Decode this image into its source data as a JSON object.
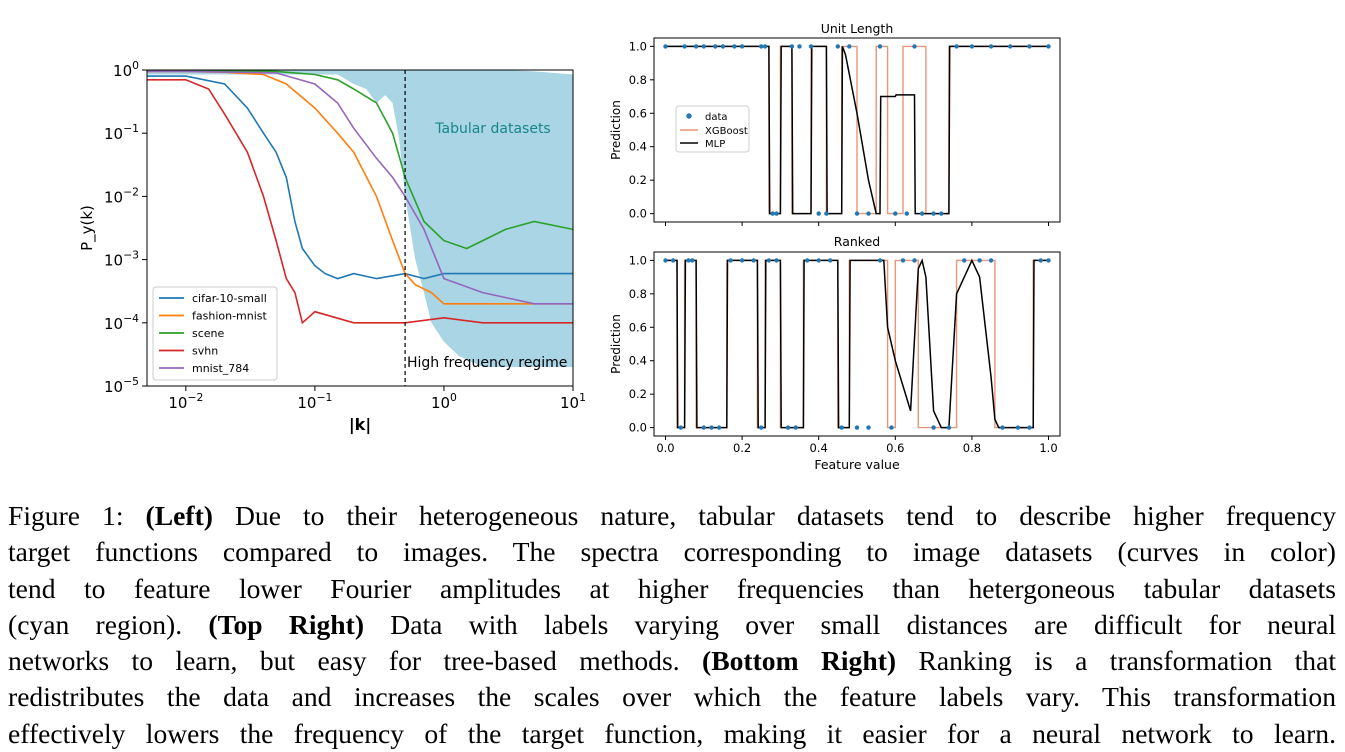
{
  "chart_data": [
    {
      "type": "line",
      "panel": "left",
      "title": "",
      "xlabel": "|k|",
      "ylabel": "P_y(k)",
      "xscale": "log",
      "yscale": "log",
      "xlim": [
        0.005,
        10
      ],
      "ylim": [
        1e-05,
        1
      ],
      "x_ticks": [
        "10^-2",
        "10^-1",
        "10^0",
        "10^1"
      ],
      "y_ticks": [
        "10^0",
        "10^-1",
        "10^-2",
        "10^-3",
        "10^-4",
        "10^-5"
      ],
      "legend": "lower-left",
      "grid": false,
      "vline": {
        "x": 0.5,
        "label": "High frequency regime"
      },
      "region": {
        "label": "Tabular datasets",
        "color": "#a9d5e4",
        "x": [
          0.005,
          0.01,
          0.02,
          0.05,
          0.1,
          0.15,
          0.2,
          0.25,
          0.3,
          0.35,
          0.4,
          0.45,
          0.5,
          0.6,
          0.7,
          0.8,
          1.0,
          1.3,
          2,
          3,
          5,
          7,
          10
        ],
        "lower": [
          0.85,
          0.85,
          0.85,
          0.85,
          0.85,
          0.85,
          0.6,
          0.5,
          0.3,
          0.4,
          0.3,
          0.08,
          0.01,
          0.001,
          0.0003,
          0.0001,
          5e-05,
          3e-05,
          2e-05,
          2e-05,
          2e-05,
          2e-05,
          2e-05
        ],
        "upper": [
          1,
          1,
          1,
          1,
          1,
          1,
          1,
          1,
          1,
          1,
          1,
          1,
          1,
          1,
          1,
          1,
          1,
          1,
          1,
          1,
          0.95,
          0.9,
          0.85
        ]
      },
      "series": [
        {
          "name": "cifar-10-small",
          "color": "#1f77b4",
          "x": [
            0.005,
            0.01,
            0.02,
            0.03,
            0.04,
            0.05,
            0.06,
            0.07,
            0.08,
            0.1,
            0.12,
            0.15,
            0.2,
            0.3,
            0.5,
            0.7,
            1,
            2,
            5,
            10
          ],
          "y": [
            0.8,
            0.8,
            0.6,
            0.25,
            0.1,
            0.05,
            0.02,
            0.004,
            0.0015,
            0.0008,
            0.0006,
            0.0005,
            0.0006,
            0.0005,
            0.0006,
            0.0005,
            0.0006,
            0.0006,
            0.0006,
            0.0006
          ]
        },
        {
          "name": "fashion-mnist",
          "color": "#ff7f0e",
          "x": [
            0.005,
            0.01,
            0.02,
            0.04,
            0.06,
            0.1,
            0.15,
            0.2,
            0.3,
            0.4,
            0.5,
            0.6,
            0.8,
            1,
            2,
            5,
            10
          ],
          "y": [
            0.95,
            0.95,
            0.92,
            0.85,
            0.6,
            0.25,
            0.1,
            0.05,
            0.01,
            0.002,
            0.0006,
            0.0004,
            0.0003,
            0.0002,
            0.0002,
            0.0002,
            0.0002
          ]
        },
        {
          "name": "scene",
          "color": "#2ca02c",
          "x": [
            0.005,
            0.01,
            0.05,
            0.1,
            0.15,
            0.2,
            0.3,
            0.4,
            0.5,
            0.7,
            1,
            1.5,
            2,
            3,
            5,
            10
          ],
          "y": [
            0.98,
            0.98,
            0.95,
            0.85,
            0.7,
            0.5,
            0.3,
            0.1,
            0.02,
            0.004,
            0.002,
            0.0015,
            0.002,
            0.003,
            0.004,
            0.003
          ]
        },
        {
          "name": "svhn",
          "color": "#d62728",
          "x": [
            0.005,
            0.01,
            0.015,
            0.02,
            0.03,
            0.04,
            0.05,
            0.06,
            0.07,
            0.08,
            0.1,
            0.2,
            0.5,
            1,
            2,
            5,
            10
          ],
          "y": [
            0.7,
            0.7,
            0.5,
            0.2,
            0.05,
            0.01,
            0.002,
            0.0005,
            0.0003,
            0.0001,
            0.00015,
            0.0001,
            0.0001,
            0.00012,
            0.0001,
            0.0001,
            0.0001
          ]
        },
        {
          "name": "mnist_784",
          "color": "#9467bd",
          "x": [
            0.005,
            0.01,
            0.05,
            0.1,
            0.15,
            0.2,
            0.3,
            0.4,
            0.5,
            0.7,
            1,
            2,
            5,
            10
          ],
          "y": [
            0.95,
            0.95,
            0.9,
            0.6,
            0.3,
            0.12,
            0.04,
            0.02,
            0.01,
            0.003,
            0.0005,
            0.0003,
            0.0002,
            0.0002
          ]
        }
      ]
    },
    {
      "type": "scatter",
      "panel": "top-right",
      "title": "Unit Length",
      "xlabel": "",
      "ylabel": "Prediction",
      "xlim": [
        -0.03,
        1.03
      ],
      "ylim": [
        -0.05,
        1.05
      ],
      "y_ticks": [
        "0.0",
        "0.2",
        "0.4",
        "0.6",
        "0.8",
        "1.0"
      ],
      "legend": "center-left",
      "segments": [
        [
          0.0,
          0.27,
          1
        ],
        [
          0.27,
          0.3,
          0
        ],
        [
          0.3,
          0.33,
          1
        ],
        [
          0.33,
          0.38,
          0
        ],
        [
          0.38,
          0.42,
          1
        ],
        [
          0.42,
          0.46,
          0
        ],
        [
          0.46,
          0.5,
          1
        ],
        [
          0.5,
          0.55,
          0
        ],
        [
          0.55,
          0.58,
          1
        ],
        [
          0.58,
          0.62,
          0
        ],
        [
          0.62,
          0.68,
          1
        ],
        [
          0.68,
          0.74,
          0
        ],
        [
          0.74,
          1.0,
          1
        ]
      ],
      "series": [
        {
          "name": "data",
          "color": "#1f77b4",
          "x": [
            0.0,
            0.05,
            0.08,
            0.1,
            0.13,
            0.15,
            0.18,
            0.2,
            0.25,
            0.26,
            0.28,
            0.29,
            0.33,
            0.35,
            0.38,
            0.4,
            0.42,
            0.45,
            0.48,
            0.5,
            0.53,
            0.56,
            0.6,
            0.63,
            0.65,
            0.67,
            0.7,
            0.72,
            0.76,
            0.8,
            0.85,
            0.9,
            0.95,
            1.0
          ],
          "y": [
            1,
            1,
            1,
            1,
            1,
            1,
            1,
            1,
            1,
            1,
            0,
            0,
            1,
            1,
            1,
            0,
            0,
            1,
            1,
            0,
            0,
            1,
            0,
            0,
            1,
            0,
            0,
            0,
            1,
            1,
            1,
            1,
            1,
            1
          ]
        },
        {
          "name": "XGBoost",
          "color": "#e8967a"
        },
        {
          "name": "MLP",
          "color": "#000000",
          "x": [
            0.0,
            0.27,
            0.272,
            0.3,
            0.302,
            0.33,
            0.332,
            0.38,
            0.382,
            0.42,
            0.422,
            0.46,
            0.462,
            0.47,
            0.5,
            0.53,
            0.55,
            0.56,
            0.562,
            0.6,
            0.602,
            0.65,
            0.652,
            0.74,
            0.742,
            1.0
          ],
          "y": [
            1,
            1,
            0,
            0,
            1,
            1,
            0,
            0,
            1,
            1,
            0,
            0,
            1,
            0.95,
            0.6,
            0.2,
            0,
            0,
            0.7,
            0.7,
            0.71,
            0.71,
            0,
            0,
            1,
            1
          ]
        }
      ]
    },
    {
      "type": "scatter",
      "panel": "bottom-right",
      "title": "Ranked",
      "xlabel": "Feature value",
      "ylabel": "Prediction",
      "xlim": [
        -0.03,
        1.03
      ],
      "ylim": [
        -0.05,
        1.05
      ],
      "x_ticks": [
        "0.0",
        "0.2",
        "0.4",
        "0.6",
        "0.8",
        "1.0"
      ],
      "y_ticks": [
        "0.0",
        "0.2",
        "0.4",
        "0.6",
        "0.8",
        "1.0"
      ],
      "segments": [
        [
          0.0,
          0.03,
          1
        ],
        [
          0.03,
          0.05,
          0
        ],
        [
          0.05,
          0.08,
          1
        ],
        [
          0.08,
          0.16,
          0
        ],
        [
          0.16,
          0.24,
          1
        ],
        [
          0.24,
          0.26,
          0
        ],
        [
          0.26,
          0.3,
          1
        ],
        [
          0.3,
          0.36,
          0
        ],
        [
          0.36,
          0.45,
          1
        ],
        [
          0.45,
          0.48,
          0
        ],
        [
          0.48,
          0.58,
          1
        ],
        [
          0.58,
          0.6,
          0
        ],
        [
          0.6,
          0.66,
          1
        ],
        [
          0.66,
          0.76,
          0
        ],
        [
          0.76,
          0.86,
          1
        ],
        [
          0.86,
          0.96,
          0
        ],
        [
          0.96,
          1.0,
          1
        ]
      ],
      "series": [
        {
          "name": "data",
          "color": "#1f77b4",
          "x": [
            0.0,
            0.02,
            0.04,
            0.06,
            0.07,
            0.1,
            0.12,
            0.14,
            0.17,
            0.2,
            0.23,
            0.25,
            0.27,
            0.29,
            0.32,
            0.34,
            0.37,
            0.4,
            0.43,
            0.46,
            0.5,
            0.53,
            0.56,
            0.59,
            0.62,
            0.65,
            0.7,
            0.74,
            0.78,
            0.82,
            0.85,
            0.88,
            0.92,
            0.95,
            0.98,
            1.0
          ],
          "y": [
            1,
            1,
            0,
            1,
            1,
            0,
            0,
            0,
            1,
            1,
            1,
            0,
            1,
            1,
            0,
            0,
            1,
            1,
            1,
            0,
            0,
            0,
            1,
            0,
            1,
            1,
            0,
            0,
            1,
            1,
            1,
            0,
            0,
            0,
            1,
            1
          ]
        },
        {
          "name": "XGBoost",
          "color": "#e8967a"
        },
        {
          "name": "MLP",
          "color": "#000000",
          "x": [
            0.0,
            0.03,
            0.032,
            0.05,
            0.052,
            0.08,
            0.082,
            0.16,
            0.162,
            0.24,
            0.242,
            0.26,
            0.262,
            0.3,
            0.302,
            0.36,
            0.362,
            0.45,
            0.452,
            0.48,
            0.482,
            0.57,
            0.58,
            0.6,
            0.64,
            0.66,
            0.67,
            0.68,
            0.7,
            0.72,
            0.74,
            0.76,
            0.8,
            0.82,
            0.85,
            0.86,
            0.87,
            0.96,
            0.962,
            1.0
          ],
          "y": [
            1,
            1,
            0,
            0,
            1,
            1,
            0,
            0,
            1,
            1,
            0,
            0,
            1,
            1,
            0,
            0,
            1,
            1,
            0,
            0,
            1,
            1,
            0.6,
            0.4,
            0.1,
            0.95,
            1,
            0.9,
            0.1,
            0,
            0,
            0.8,
            1,
            0.9,
            0.3,
            0.05,
            0,
            0,
            1,
            1
          ]
        }
      ]
    }
  ],
  "caption": {
    "lines": [
      [
        {
          "t": "Figure 1: "
        },
        {
          "t": "(Left)",
          "b": true
        },
        {
          "t": " Due to their heterogeneous nature, tabular datasets tend to describe higher frequency"
        }
      ],
      [
        {
          "t": "target functions compared to images. The spectra corresponding to image datasets (curves in color)"
        }
      ],
      [
        {
          "t": "tend to feature lower Fourier amplitudes at higher frequencies than hetergoneous tabular datasets"
        }
      ],
      [
        {
          "t": "(cyan region). "
        },
        {
          "t": "(Top Right)",
          "b": true
        },
        {
          "t": " Data with labels varying over small distances are difficult for neural"
        }
      ],
      [
        {
          "t": "networks to learn, but easy for tree-based methods. "
        },
        {
          "t": "(Bottom Right)",
          "b": true
        },
        {
          "t": " Ranking is a transformation that"
        }
      ],
      [
        {
          "t": "redistributes the data and increases the scales over which the feature labels vary. This transformation"
        }
      ],
      [
        {
          "t": "effectively lowers the frequency of the target function, making it easier for a neural network to learn."
        }
      ]
    ]
  }
}
